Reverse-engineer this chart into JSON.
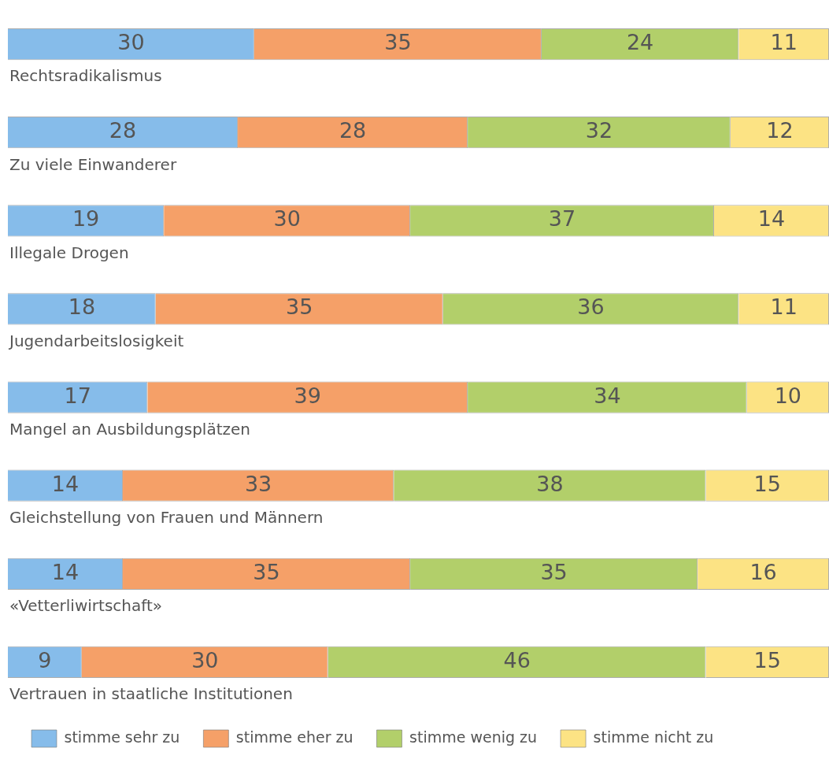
{
  "chart_data": {
    "type": "bar",
    "orientation": "horizontal",
    "stacked": true,
    "categories": [
      "Rechtsradikalismus",
      "Zu viele Einwanderer",
      "Illegale Drogen",
      "Jugendarbeitslosigkeit",
      "Mangel an Ausbildungsplätzen",
      "Gleichstellung von Frauen und Männern",
      "«Vetterliwirtschaft»",
      "Vertrauen in staatliche Institutionen"
    ],
    "series": [
      {
        "name": "stimme sehr zu",
        "color": "#86bcea",
        "values": [
          30,
          28,
          19,
          18,
          17,
          14,
          14,
          9
        ]
      },
      {
        "name": "stimme eher zu",
        "color": "#f5a068",
        "values": [
          35,
          28,
          30,
          35,
          39,
          33,
          35,
          30
        ]
      },
      {
        "name": "stimme wenig zu",
        "color": "#b2cf6a",
        "values": [
          24,
          32,
          37,
          36,
          34,
          38,
          35,
          46
        ]
      },
      {
        "name": "stimme nicht zu",
        "color": "#fce384",
        "values": [
          11,
          12,
          14,
          11,
          10,
          15,
          16,
          15
        ]
      }
    ],
    "xlim": [
      0,
      100
    ],
    "data_labels": true,
    "tick_labels": "y",
    "legend": "bottom left"
  }
}
